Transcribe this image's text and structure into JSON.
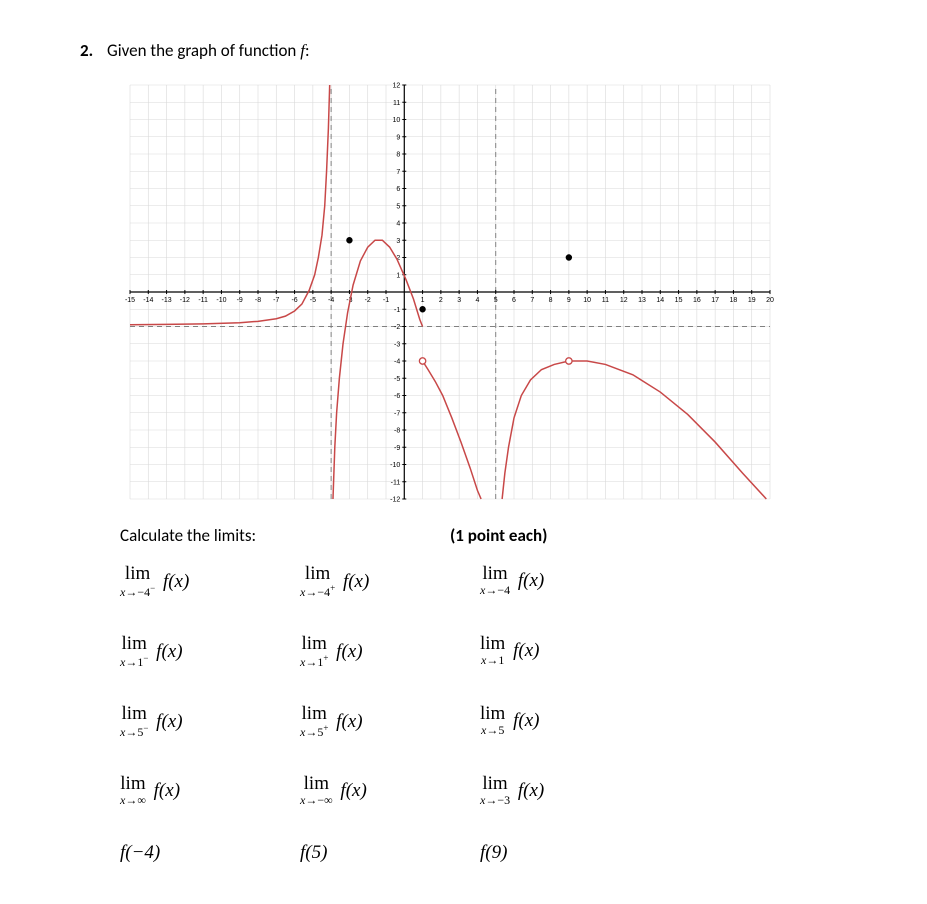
{
  "problem_number": "2.",
  "prompt_text": "Given the graph of function ",
  "prompt_funcsym": "f",
  "prompt_colon": ":",
  "calc_label": "Calculate the limits:",
  "points_label": "(1 point each)",
  "chart": {
    "x_min": -15,
    "x_max": 20,
    "y_min": -12,
    "y_max": 12,
    "x_ticks": [
      -15,
      -14,
      -13,
      -12,
      -11,
      -10,
      -9,
      -8,
      -7,
      -6,
      -5,
      -4,
      -3,
      -2,
      -1,
      0,
      1,
      2,
      3,
      4,
      5,
      6,
      7,
      8,
      9,
      10,
      11,
      12,
      13,
      14,
      15,
      16,
      17,
      18,
      19,
      20
    ],
    "x_tick_labels": [
      "-15",
      "-14",
      "-13",
      "-12",
      "-11",
      "-10",
      "-9",
      "-8",
      "-7",
      "-6",
      "-5",
      "-4",
      "-3",
      "-2",
      "-1",
      "0",
      "1",
      "2",
      "3",
      "4",
      "5",
      "6",
      "7",
      "8",
      "9",
      "10",
      "11",
      "12",
      "13",
      "14",
      "15",
      "16",
      "17",
      "18",
      "19",
      "20"
    ],
    "y_ticks": [
      -12,
      -11,
      -10,
      -9,
      -8,
      -7,
      -6,
      -5,
      -4,
      -3,
      -2,
      -1,
      1,
      2,
      3,
      4,
      5,
      6,
      7,
      8,
      9,
      10,
      11,
      12
    ],
    "y_tick_labels": [
      "-12",
      "-11",
      "-10",
      "-9",
      "-8",
      "-7",
      "-6",
      "-5",
      "-4",
      "-3",
      "-2",
      "-1",
      "1",
      "2",
      "3",
      "4",
      "5",
      "6",
      "7",
      "8",
      "9",
      "10",
      "11",
      "12"
    ],
    "grid_color": "#d9d9d9",
    "axis_color": "#000000",
    "asymptote_color": "#808080",
    "curve_color": "#c84848",
    "tick_font_size": 7,
    "asymptotes": {
      "vertical": [
        -4,
        5
      ],
      "horizontal": [
        -2
      ]
    },
    "closed_points": [
      [
        -3,
        3
      ],
      [
        1,
        -1
      ],
      [
        9,
        2
      ]
    ],
    "open_points": [
      [
        1,
        -4
      ],
      [
        9,
        -4
      ]
    ],
    "curves": [
      [
        [
          -15,
          -1.9
        ],
        [
          -13,
          -1.88
        ],
        [
          -11,
          -1.85
        ],
        [
          -9,
          -1.78
        ],
        [
          -8,
          -1.7
        ],
        [
          -7,
          -1.55
        ],
        [
          -6.5,
          -1.4
        ],
        [
          -6,
          -1.1
        ],
        [
          -5.6,
          -0.7
        ],
        [
          -5.2,
          0.1
        ],
        [
          -4.9,
          1.0
        ],
        [
          -4.7,
          2.0
        ],
        [
          -4.5,
          3.3
        ],
        [
          -4.35,
          5.0
        ],
        [
          -4.25,
          7.0
        ],
        [
          -4.15,
          9.5
        ],
        [
          -4.08,
          12.0
        ]
      ],
      [
        [
          -3.9,
          -12.0
        ],
        [
          -3.8,
          -9.0
        ],
        [
          -3.7,
          -7.0
        ],
        [
          -3.55,
          -5.0
        ],
        [
          -3.35,
          -3.0
        ],
        [
          -3.1,
          -1.2
        ],
        [
          -2.8,
          0.4
        ],
        [
          -2.4,
          1.8
        ],
        [
          -2.0,
          2.6
        ],
        [
          -1.6,
          3.0
        ],
        [
          -1.2,
          3.0
        ],
        [
          -0.8,
          2.6
        ],
        [
          -0.4,
          1.9
        ],
        [
          0.1,
          0.7
        ],
        [
          0.5,
          -0.4
        ],
        [
          0.85,
          -1.6
        ],
        [
          1.0,
          -2.0
        ]
      ],
      [
        [
          1.0,
          -4.0
        ],
        [
          1.3,
          -4.5
        ],
        [
          1.7,
          -5.2
        ],
        [
          2.1,
          -6.0
        ],
        [
          2.6,
          -7.3
        ],
        [
          3.1,
          -8.7
        ],
        [
          3.6,
          -10.2
        ],
        [
          4.0,
          -11.5
        ],
        [
          4.2,
          -12.0
        ]
      ],
      [
        [
          5.35,
          -12.0
        ],
        [
          5.5,
          -10.5
        ],
        [
          5.7,
          -9.0
        ],
        [
          6.0,
          -7.3
        ],
        [
          6.4,
          -6.0
        ],
        [
          6.9,
          -5.1
        ],
        [
          7.5,
          -4.5
        ],
        [
          8.2,
          -4.2
        ],
        [
          9.0,
          -4.0
        ],
        [
          10.0,
          -4.0
        ],
        [
          11.0,
          -4.2
        ],
        [
          12.5,
          -4.8
        ],
        [
          14.0,
          -5.8
        ],
        [
          15.5,
          -7.1
        ],
        [
          17.0,
          -8.7
        ],
        [
          18.5,
          -10.5
        ],
        [
          19.8,
          -12.0
        ]
      ]
    ]
  },
  "limits_grid": [
    [
      {
        "type": "lim",
        "approach": "−4",
        "sup": "−",
        "of": "f(x)"
      },
      {
        "type": "lim",
        "approach": "−4",
        "sup": "+",
        "of": "f(x)"
      },
      {
        "type": "lim",
        "approach": "−4",
        "sup": "",
        "of": "f(x)"
      }
    ],
    [
      {
        "type": "lim",
        "approach": "1",
        "sup": "−",
        "of": "f(x)"
      },
      {
        "type": "lim",
        "approach": "1",
        "sup": "+",
        "of": "f(x)"
      },
      {
        "type": "lim",
        "approach": "1",
        "sup": "",
        "of": "f(x)"
      }
    ],
    [
      {
        "type": "lim",
        "approach": "5",
        "sup": "−",
        "of": "f(x)"
      },
      {
        "type": "lim",
        "approach": "5",
        "sup": "+",
        "of": "f(x)"
      },
      {
        "type": "lim",
        "approach": "5",
        "sup": "",
        "of": "f(x)"
      }
    ],
    [
      {
        "type": "lim",
        "approach": "∞",
        "sup": "",
        "of": "f(x)"
      },
      {
        "type": "lim",
        "approach": "−∞",
        "sup": "",
        "of": "f(x)"
      },
      {
        "type": "lim",
        "approach": "−3",
        "sup": "",
        "of": "f(x)"
      }
    ],
    [
      {
        "type": "fn",
        "arg": "−4"
      },
      {
        "type": "fn",
        "arg": "5"
      },
      {
        "type": "fn",
        "arg": "9"
      }
    ]
  ]
}
